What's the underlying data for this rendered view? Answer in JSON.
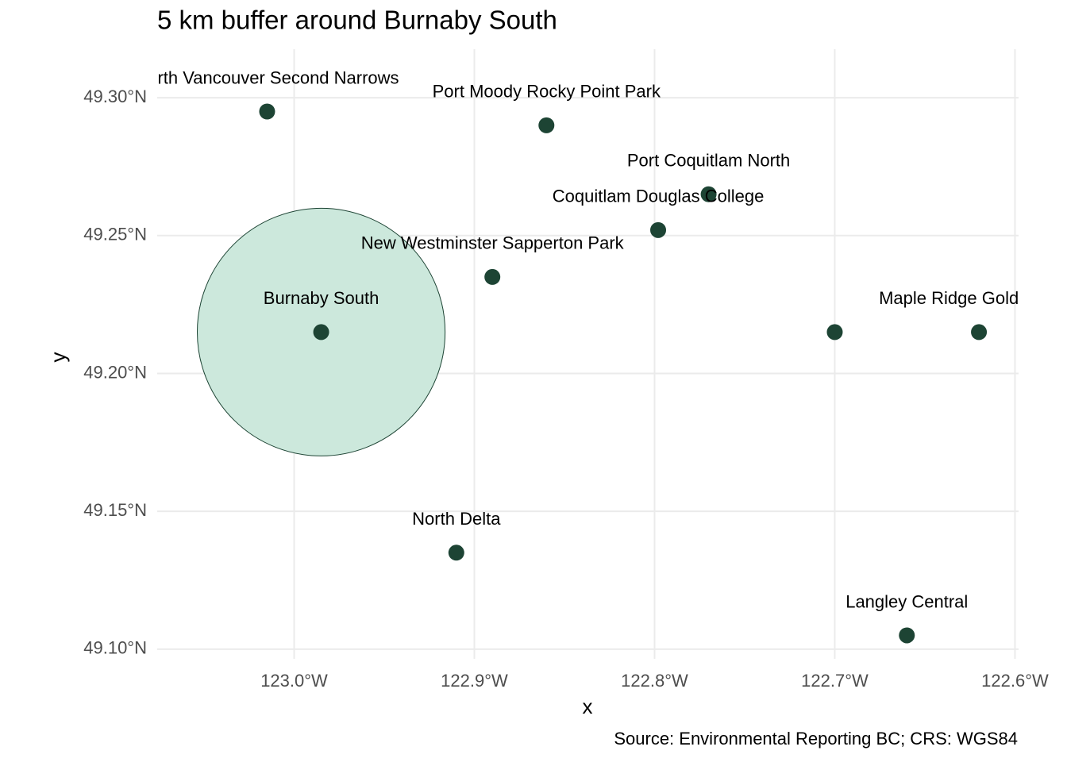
{
  "chart_data": {
    "type": "scatter",
    "title": "5 km buffer around Burnaby South",
    "x_label": "x",
    "y_label": "y",
    "caption": "Source: Environmental Reporting BC; CRS: WGS84",
    "labels": [
      "North Vancouver Second Narrows",
      "Port Moody Rocky Point Park",
      "Port Coquitlam North",
      "Coquitlam Douglas College",
      "New Westminster Sapperton Park",
      "Burnaby South",
      null,
      "Maple Ridge Golden Ears",
      "North Delta",
      "Langley Central"
    ],
    "x": [
      -123.015,
      -122.86,
      -122.77,
      -122.798,
      -122.89,
      -122.985,
      -122.7,
      -122.62,
      -122.91,
      -122.66
    ],
    "y": [
      49.295,
      49.29,
      49.265,
      49.252,
      49.235,
      49.215,
      49.215,
      49.215,
      49.135,
      49.105
    ],
    "color": "#1d4434",
    "buffer_center": "Burnaby South",
    "buffer_radius_km": 5,
    "buffer_color": "#cce8dc",
    "xlim": [
      -123.076,
      -122.598
    ],
    "ylim": [
      49.0965,
      49.3176
    ],
    "xticks": [
      {
        "value": -123.0,
        "label": "123.0°W"
      },
      {
        "value": -122.9,
        "label": "122.9°W"
      },
      {
        "value": -122.8,
        "label": "122.8°W"
      },
      {
        "value": -122.7,
        "label": "122.7°W"
      },
      {
        "value": -122.6,
        "label": "122.6°W"
      }
    ],
    "yticks": [
      {
        "value": 49.1,
        "label": "49.10°N"
      },
      {
        "value": 49.15,
        "label": "49.15°N"
      },
      {
        "value": 49.2,
        "label": "49.20°N"
      },
      {
        "value": 49.25,
        "label": "49.25°N"
      },
      {
        "value": 49.3,
        "label": "49.30°N"
      }
    ],
    "grid": true
  }
}
